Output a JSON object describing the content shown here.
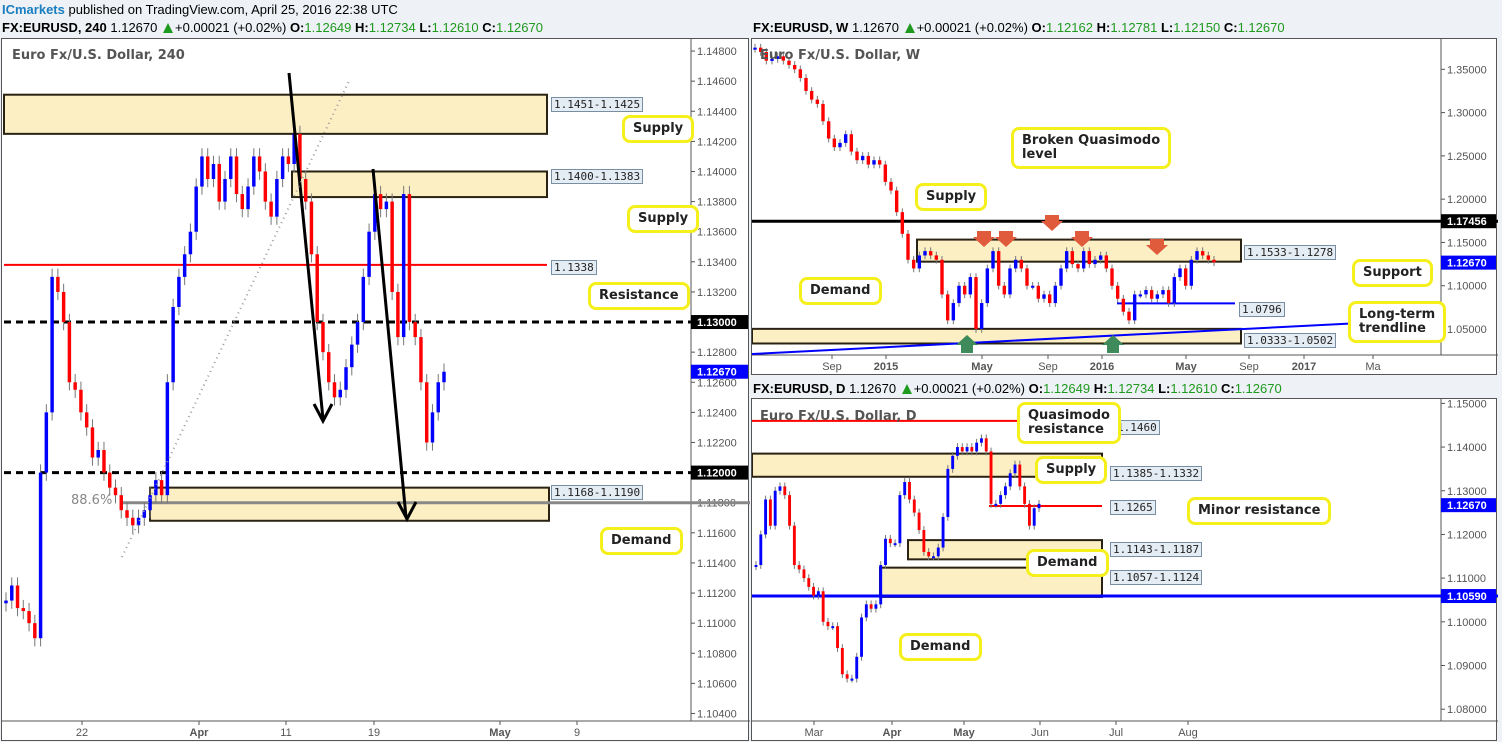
{
  "publish_line": {
    "brand": "ICmarkets",
    "text": "published on TradingView.com, April 25, 2016 22:38 UTC"
  },
  "chart_data": [
    {
      "id": "h4",
      "type": "candlestick",
      "symbol": "FX:EURUSD",
      "timeframe": "240",
      "title": "Euro Fx/U.S. Dollar, 240",
      "header": {
        "symbol_tf": "FX:EURUSD, 240",
        "last": "1.12670",
        "change": "+0.00021 (+0.02%)",
        "O": "1.12649",
        "H": "1.12734",
        "L": "1.12610",
        "C": "1.12670"
      },
      "y_ticks": [
        "1.14800",
        "1.14600",
        "1.14400",
        "1.14200",
        "1.14000",
        "1.13800",
        "1.13600",
        "1.13400",
        "1.13200",
        "1.13000",
        "1.12800",
        "1.12600",
        "1.12400",
        "1.12200",
        "1.12000",
        "1.11800",
        "1.11600",
        "1.11400",
        "1.11200",
        "1.11000",
        "1.10800",
        "1.10600",
        "1.10400"
      ],
      "ylim": [
        1.1035,
        1.1488
      ],
      "x_ticks": [
        "22",
        "Apr",
        "11",
        "19",
        "May",
        "9"
      ],
      "price_labels": [
        {
          "value": "1.13000",
          "color": "#000000"
        },
        {
          "value": "1.12670",
          "color": "#0000ff"
        },
        {
          "value": "1.12000",
          "color": "#000000"
        }
      ],
      "zones": [
        {
          "label": "1.1451-1.1425",
          "low": 1.1425,
          "high": 1.1451,
          "type": "Supply"
        },
        {
          "label": "1.1400-1.1383",
          "low": 1.1383,
          "high": 1.14,
          "type": "Supply"
        },
        {
          "label": "1.1168-1.1190",
          "low": 1.1168,
          "high": 1.119,
          "type": "Demand"
        }
      ],
      "levels": [
        {
          "label": "1.1338",
          "value": 1.1338,
          "type": "Resistance",
          "color": "#ff0000"
        },
        {
          "value": 1.13,
          "style": "dashed",
          "color": "#000000"
        },
        {
          "value": 1.12,
          "style": "dashed",
          "color": "#000000"
        },
        {
          "value": 1.118,
          "label": "88.6%",
          "color": "#888888"
        }
      ],
      "annotations": [
        "Supply",
        "Supply",
        "Resistance",
        "Demand"
      ],
      "approx_closes": [
        1.1115,
        1.1125,
        1.111,
        1.1108,
        1.11,
        1.109,
        1.12,
        1.124,
        1.133,
        1.132,
        1.13,
        1.126,
        1.1255,
        1.124,
        1.123,
        1.121,
        1.1215,
        1.12,
        1.119,
        1.1185,
        1.1175,
        1.117,
        1.1165,
        1.117,
        1.1175,
        1.1185,
        1.1195,
        1.1185,
        1.126,
        1.131,
        1.133,
        1.1345,
        1.136,
        1.139,
        1.141,
        1.1395,
        1.1405,
        1.138,
        1.1395,
        1.141,
        1.1385,
        1.1375,
        1.139,
        1.141,
        1.14,
        1.138,
        1.137,
        1.1395,
        1.141,
        1.1405,
        1.1425,
        1.1395,
        1.138,
        1.1345,
        1.13,
        1.128,
        1.126,
        1.125,
        1.1255,
        1.127,
        1.1285,
        1.13,
        1.133,
        1.136,
        1.1385,
        1.1375,
        1.138,
        1.132,
        1.129,
        1.1385,
        1.13,
        1.129,
        1.126,
        1.122,
        1.124,
        1.126,
        1.1267
      ]
    },
    {
      "id": "weekly",
      "type": "candlestick",
      "symbol": "FX:EURUSD",
      "timeframe": "W",
      "title": "Euro Fx/U.S. Dollar, W",
      "header": {
        "symbol_tf": "FX:EURUSD, W",
        "last": "1.12670",
        "change": "+0.00021 (+0.02%)",
        "O": "1.12162",
        "H": "1.12781",
        "L": "1.12150",
        "C": "1.12670"
      },
      "y_ticks": [
        "1.35000",
        "1.30000",
        "1.25000",
        "1.20000",
        "1.15000",
        "1.10000",
        "1.05000"
      ],
      "ylim": [
        1.02,
        1.385
      ],
      "x_ticks": [
        "Sep",
        "2015",
        "May",
        "Sep",
        "2016",
        "May",
        "Sep",
        "2017",
        "Ma"
      ],
      "price_labels": [
        {
          "value": "1.17456",
          "color": "#000000"
        },
        {
          "value": "1.12670",
          "color": "#0000ff"
        }
      ],
      "zones": [
        {
          "label": "1.1533-1.1278",
          "low": 1.1278,
          "high": 1.1533,
          "type": "Supply"
        },
        {
          "label": "1.0333-1.0502",
          "low": 1.0333,
          "high": 1.0502,
          "type": "Demand"
        }
      ],
      "levels": [
        {
          "value": 1.17456,
          "type": "Broken Quasimodo level",
          "color": "#000000"
        },
        {
          "label": "1.0796",
          "value": 1.0796,
          "type": "Support",
          "color": "#0000ff"
        }
      ],
      "annotations": [
        "Supply",
        "Demand",
        "Broken Quasimodo level",
        "Support",
        "Long-term trendline"
      ],
      "markers": {
        "red_down_arrows": 5,
        "green_up_arrows": 2
      },
      "approx_closes": [
        1.375,
        1.37,
        1.36,
        1.362,
        1.365,
        1.36,
        1.355,
        1.35,
        1.34,
        1.325,
        1.315,
        1.31,
        1.29,
        1.27,
        1.26,
        1.265,
        1.275,
        1.255,
        1.245,
        1.25,
        1.24,
        1.245,
        1.24,
        1.22,
        1.21,
        1.185,
        1.16,
        1.13,
        1.12,
        1.135,
        1.14,
        1.135,
        1.13,
        1.09,
        1.06,
        1.08,
        1.1,
        1.09,
        1.11,
        1.05,
        1.08,
        1.12,
        1.14,
        1.1,
        1.09,
        1.12,
        1.13,
        1.12,
        1.1,
        1.1,
        1.085,
        1.09,
        1.08,
        1.1,
        1.12,
        1.14,
        1.125,
        1.12,
        1.14,
        1.125,
        1.13,
        1.135,
        1.12,
        1.1,
        1.085,
        1.07,
        1.06,
        1.09,
        1.09,
        1.095,
        1.085,
        1.09,
        1.095,
        1.08,
        1.11,
        1.12,
        1.1,
        1.13,
        1.14,
        1.135,
        1.13,
        1.127
      ]
    },
    {
      "id": "daily",
      "type": "candlestick",
      "symbol": "FX:EURUSD",
      "timeframe": "D",
      "title": "Euro Fx/U.S. Dollar, D",
      "header": {
        "symbol_tf": "FX:EURUSD, D",
        "last": "1.12670",
        "change": "+0.00021 (+0.02%)",
        "O": "1.12649",
        "H": "1.12734",
        "L": "1.12610",
        "C": "1.12670"
      },
      "y_ticks": [
        "1.15000",
        "1.14000",
        "1.13000",
        "1.12000",
        "1.11000",
        "1.10000",
        "1.09000",
        "1.08000"
      ],
      "ylim": [
        1.0773,
        1.151
      ],
      "x_ticks": [
        "Mar",
        "Apr",
        "May",
        "Jun",
        "Jul",
        "Aug"
      ],
      "price_labels": [
        {
          "value": "1.12670",
          "color": "#0000ff"
        },
        {
          "value": "1.10590",
          "color": "#0000ff"
        }
      ],
      "zones": [
        {
          "label": "1.1385-1.1332",
          "low": 1.1332,
          "high": 1.1385,
          "type": "Supply"
        },
        {
          "label": "1.1143-1.1187",
          "low": 1.1143,
          "high": 1.1187,
          "type": "Demand"
        },
        {
          "label": "1.1057-1.1124",
          "low": 1.1057,
          "high": 1.1124,
          "type": "Demand"
        }
      ],
      "levels": [
        {
          "label": "1.1460",
          "value": 1.146,
          "type": "Quasimodo resistance",
          "color": "#ff0000"
        },
        {
          "label": "1.1265",
          "value": 1.1265,
          "type": "Minor resistance",
          "color": "#ff0000"
        },
        {
          "value": 1.1059,
          "color": "#0000ff"
        }
      ],
      "annotations": [
        "Quasimodo resistance",
        "Supply",
        "Minor resistance",
        "Demand",
        "Demand"
      ],
      "approx_closes": [
        1.113,
        1.12,
        1.128,
        1.122,
        1.13,
        1.131,
        1.129,
        1.122,
        1.113,
        1.112,
        1.11,
        1.108,
        1.106,
        1.107,
        1.1,
        1.099,
        1.099,
        1.094,
        1.088,
        1.087,
        1.087,
        1.092,
        1.101,
        1.104,
        1.103,
        1.104,
        1.113,
        1.119,
        1.118,
        1.118,
        1.129,
        1.132,
        1.128,
        1.125,
        1.121,
        1.116,
        1.115,
        1.115,
        1.117,
        1.124,
        1.135,
        1.138,
        1.14,
        1.139,
        1.14,
        1.139,
        1.141,
        1.142,
        1.139,
        1.127,
        1.127,
        1.129,
        1.131,
        1.134,
        1.136,
        1.131,
        1.127,
        1.122,
        1.126,
        1.127
      ]
    }
  ],
  "h4_panel": {
    "title": "Euro Fx/U.S. Dollar, 240",
    "zone_tags": [
      "1.1451-1.1425",
      "1.1400-1.1383",
      "1.1168-1.1190"
    ],
    "level_tag": "1.1338",
    "fib_label": "88.6%",
    "callouts": [
      "Supply",
      "Supply",
      "Resistance",
      "Demand"
    ]
  },
  "weekly_panel": {
    "title": "Euro Fx/U.S. Dollar, W",
    "tags": [
      "1.1533-1.1278",
      "1.0796",
      "1.0333-1.0502"
    ],
    "callouts": [
      "Supply",
      "Demand",
      "Broken Quasimodo\nlevel",
      "Support",
      "Long-term\ntrendline"
    ]
  },
  "daily_panel": {
    "title": "Euro Fx/U.S. Dollar, D",
    "tags": [
      "1.1460",
      "1.1385-1.1332",
      "1.1265",
      "1.1143-1.1187",
      "1.1057-1.1124"
    ],
    "callouts": [
      "Quasimodo\nresistance",
      "Supply",
      "Minor resistance",
      "Demand",
      "Demand"
    ]
  },
  "colors": {
    "bull": "#0000ff",
    "bear": "#ff0000",
    "zone_fill": "#fdefc4",
    "callout_border": "#f5ef1c",
    "up_green": "#1e9a1e"
  }
}
